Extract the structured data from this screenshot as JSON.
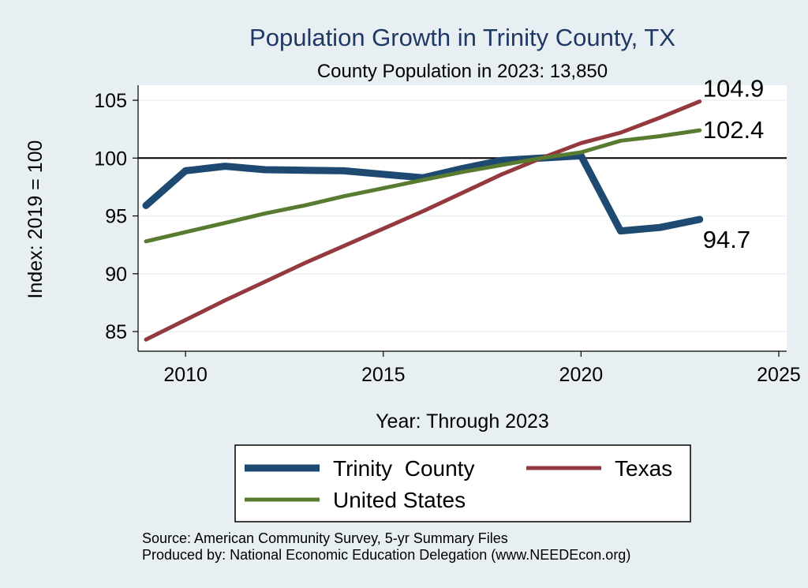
{
  "chart_data": {
    "type": "line",
    "title": "Population Growth in Trinity County, TX",
    "subtitle": "County Population in 2023: 13,850",
    "xlabel": "Year: Through 2023",
    "ylabel": "Index: 2019 = 100",
    "xlim": [
      2008.8,
      2025.2
    ],
    "ylim": [
      83.3,
      106.3
    ],
    "x_ticks": [
      2010,
      2015,
      2020,
      2025
    ],
    "y_ticks": [
      85,
      90,
      95,
      100,
      105
    ],
    "reference_line": 100,
    "x": [
      2009,
      2010,
      2011,
      2012,
      2013,
      2014,
      2015,
      2016,
      2017,
      2018,
      2019,
      2020,
      2021,
      2022,
      2023
    ],
    "series": [
      {
        "name": "Trinity  County",
        "color": "#1e4a72",
        "values": [
          95.9,
          98.9,
          99.3,
          99.0,
          98.95,
          98.9,
          98.6,
          98.3,
          99.1,
          99.8,
          100.0,
          100.2,
          93.7,
          94.0,
          94.7
        ],
        "end_label": "94.7"
      },
      {
        "name": "Texas",
        "color": "#943a3f",
        "values": [
          84.3,
          86.0,
          87.7,
          89.3,
          90.9,
          92.4,
          93.9,
          95.4,
          97.0,
          98.6,
          100.0,
          101.3,
          102.2,
          103.5,
          104.9
        ],
        "end_label": "104.9"
      },
      {
        "name": "United States",
        "color": "#587b30",
        "values": [
          92.8,
          93.6,
          94.4,
          95.2,
          95.9,
          96.7,
          97.4,
          98.1,
          98.8,
          99.4,
          100.0,
          100.5,
          101.5,
          101.9,
          102.4
        ],
        "end_label": "102.4"
      }
    ],
    "legend_position": "bottom",
    "source_line1": "Source: American Community Survey, 5-yr Summary Files",
    "source_line2": "Produced by: National Economic Education Delegation (www.NEEDEcon.org)"
  }
}
